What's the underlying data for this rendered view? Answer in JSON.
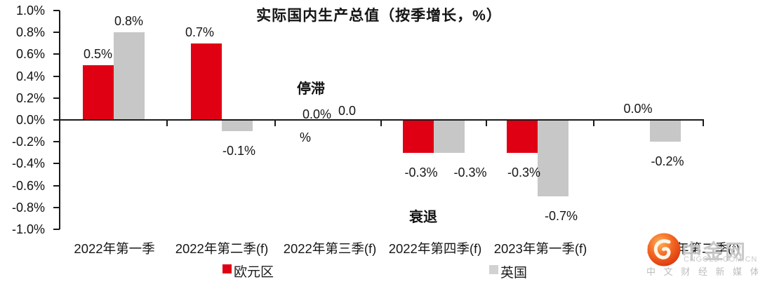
{
  "chart_data": {
    "type": "bar",
    "title": "实际国内生产总值（按季增长，%）",
    "categories": [
      "2022年第一季",
      "2022年第二季(f)",
      "2022年第三季(f)",
      "2022年第四季(f)",
      "2023年第一季(f)",
      "2023年第二季(f)"
    ],
    "series": [
      {
        "name": "欧元区",
        "key": "eurozone",
        "color": "#e00013",
        "values": [
          0.5,
          0.7,
          0.0,
          -0.3,
          -0.3,
          0.0
        ],
        "labels": [
          "0.5%",
          "0.7%",
          "0.0%",
          "-0.3%",
          "-0.3%",
          "0.0%"
        ]
      },
      {
        "name": "英国",
        "key": "uk",
        "color": "#c7c7c7",
        "values": [
          0.8,
          -0.1,
          0.0,
          -0.3,
          -0.7,
          -0.2
        ],
        "labels": [
          "0.8%",
          "-0.1%",
          null,
          "-0.3%",
          "-0.7%",
          "-0.2%"
        ]
      }
    ],
    "ylim": [
      -1.0,
      1.0
    ],
    "ytick_step": 0.2,
    "ytick_labels": [
      "1.0%",
      "0.8%",
      "0.6%",
      "0.4%",
      "0.2%",
      "0.0%",
      "-0.2%",
      "-0.4%",
      "-0.6%",
      "-0.8%",
      "-1.0%"
    ],
    "grid": false,
    "legend_position": "bottom",
    "axis_color": "#1a1a1a",
    "annotations": [
      {
        "id": "stagnation",
        "text": "停滞",
        "bold": true
      },
      {
        "id": "recession",
        "text": "衰退",
        "bold": true
      },
      {
        "id": "uk-q3-value-line1",
        "text": "0.0",
        "bold": false
      },
      {
        "id": "uk-q3-value-line2",
        "text": "%",
        "bold": false
      }
    ],
    "legend": [
      {
        "key": "eurozone",
        "label": "欧元区",
        "color": "#e00013"
      },
      {
        "key": "uk",
        "label": "英国",
        "color": "#d2d2d2"
      }
    ]
  },
  "watermark": {
    "brand": "中金网",
    "domain": "CNGOLD.COM.CN",
    "tagline": "中 文 财 经 新 媒 体"
  }
}
